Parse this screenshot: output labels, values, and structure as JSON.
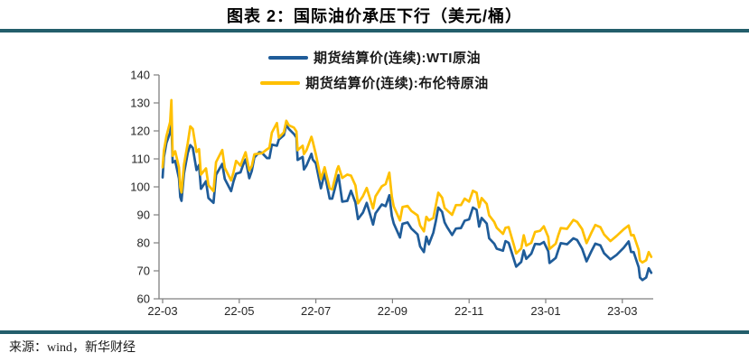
{
  "header": {
    "title": "图表 2：国际油价承压下行（美元/桶）"
  },
  "footer": {
    "source": "来源：wind，新华财经"
  },
  "colors": {
    "divider": "#235E6B",
    "axis": "#7F7F7F",
    "tick_text": "#262626",
    "background": "#FFFFFF"
  },
  "chart_data": {
    "type": "line",
    "title": "图表 2：国际油价承压下行（美元/桶）",
    "xlabel": "",
    "ylabel": "",
    "ylim": [
      60,
      140
    ],
    "y_ticks": [
      60,
      70,
      80,
      90,
      100,
      110,
      120,
      130,
      140
    ],
    "x_tick_labels": [
      "22-03",
      "22-05",
      "22-07",
      "22-09",
      "22-11",
      "23-01",
      "23-03"
    ],
    "x_tick_months": [
      0,
      2,
      4,
      6,
      8,
      10,
      12
    ],
    "grid": false,
    "legend_position": "top",
    "dates": [
      "2022-03-01",
      "2022-03-02",
      "2022-03-04",
      "2022-03-07",
      "2022-03-08",
      "2022-03-09",
      "2022-03-11",
      "2022-03-14",
      "2022-03-15",
      "2022-03-16",
      "2022-03-18",
      "2022-03-21",
      "2022-03-23",
      "2022-03-25",
      "2022-03-28",
      "2022-03-30",
      "2022-04-01",
      "2022-04-05",
      "2022-04-07",
      "2022-04-11",
      "2022-04-13",
      "2022-04-18",
      "2022-04-20",
      "2022-04-25",
      "2022-04-27",
      "2022-04-29",
      "2022-05-02",
      "2022-05-04",
      "2022-05-06",
      "2022-05-09",
      "2022-05-11",
      "2022-05-13",
      "2022-05-17",
      "2022-05-19",
      "2022-05-23",
      "2022-05-25",
      "2022-05-27",
      "2022-05-31",
      "2022-06-02",
      "2022-06-06",
      "2022-06-08",
      "2022-06-10",
      "2022-06-14",
      "2022-06-16",
      "2022-06-17",
      "2022-06-21",
      "2022-06-22",
      "2022-06-24",
      "2022-06-28",
      "2022-06-29",
      "2022-07-01",
      "2022-07-05",
      "2022-07-08",
      "2022-07-12",
      "2022-07-14",
      "2022-07-18",
      "2022-07-19",
      "2022-07-22",
      "2022-07-26",
      "2022-07-29",
      "2022-08-02",
      "2022-08-04",
      "2022-08-08",
      "2022-08-11",
      "2022-08-16",
      "2022-08-18",
      "2022-08-23",
      "2022-08-26",
      "2022-08-29",
      "2022-08-31",
      "2022-09-02",
      "2022-09-07",
      "2022-09-09",
      "2022-09-13",
      "2022-09-16",
      "2022-09-21",
      "2022-09-23",
      "2022-09-26",
      "2022-09-28",
      "2022-09-30",
      "2022-10-03",
      "2022-10-05",
      "2022-10-07",
      "2022-10-10",
      "2022-10-12",
      "2022-10-14",
      "2022-10-18",
      "2022-10-21",
      "2022-10-25",
      "2022-10-28",
      "2022-11-01",
      "2022-11-04",
      "2022-11-07",
      "2022-11-09",
      "2022-11-11",
      "2022-11-15",
      "2022-11-17",
      "2022-11-21",
      "2022-11-23",
      "2022-11-28",
      "2022-11-30",
      "2022-12-02",
      "2022-12-06",
      "2022-12-08",
      "2022-12-12",
      "2022-12-14",
      "2022-12-16",
      "2022-12-20",
      "2022-12-23",
      "2022-12-27",
      "2022-12-30",
      "2023-01-03",
      "2023-01-04",
      "2023-01-09",
      "2023-01-11",
      "2023-01-13",
      "2023-01-18",
      "2023-01-23",
      "2023-01-26",
      "2023-01-30",
      "2023-02-03",
      "2023-02-07",
      "2023-02-10",
      "2023-02-14",
      "2023-02-17",
      "2023-02-22",
      "2023-02-27",
      "2023-03-02",
      "2023-03-06",
      "2023-03-08",
      "2023-03-10",
      "2023-03-14",
      "2023-03-15",
      "2023-03-17",
      "2023-03-20",
      "2023-03-22",
      "2023-03-24"
    ],
    "series": [
      {
        "name": "期货结算价(连续):WTI原油",
        "color": "#1F5C99",
        "values": [
          103.4,
          110.6,
          115.7,
          119.4,
          123.7,
          108.7,
          109.3,
          103.0,
          96.4,
          95.0,
          104.7,
          112.1,
          114.9,
          113.9,
          106.0,
          107.8,
          99.3,
          102.0,
          96.0,
          94.3,
          104.3,
          108.2,
          102.8,
          98.5,
          102.0,
          104.7,
          105.2,
          107.8,
          109.8,
          103.1,
          105.7,
          110.5,
          112.4,
          112.2,
          110.3,
          110.3,
          115.1,
          114.7,
          116.9,
          118.5,
          122.1,
          120.7,
          118.9,
          117.6,
          109.6,
          110.7,
          106.2,
          107.6,
          111.8,
          109.8,
          108.4,
          99.5,
          104.8,
          95.8,
          95.8,
          102.6,
          104.2,
          94.7,
          95.0,
          98.6,
          94.4,
          88.5,
          90.8,
          94.3,
          86.5,
          90.5,
          93.7,
          93.1,
          97.0,
          89.6,
          86.9,
          81.9,
          86.8,
          87.3,
          85.1,
          83.0,
          78.7,
          76.7,
          82.2,
          79.5,
          83.6,
          87.8,
          92.6,
          91.1,
          87.3,
          85.6,
          82.8,
          85.1,
          85.3,
          87.9,
          88.4,
          92.6,
          91.8,
          85.8,
          88.9,
          86.9,
          81.6,
          79.7,
          77.9,
          77.2,
          80.6,
          80.0,
          74.3,
          71.5,
          73.2,
          77.3,
          74.3,
          76.1,
          79.6,
          79.5,
          80.3,
          77.0,
          72.8,
          74.6,
          77.4,
          79.9,
          79.5,
          81.6,
          81.0,
          77.9,
          73.4,
          77.1,
          79.7,
          79.1,
          76.3,
          74.1,
          75.7,
          78.2,
          80.5,
          76.7,
          76.7,
          71.3,
          67.6,
          66.7,
          67.6,
          70.9,
          69.3
        ]
      },
      {
        "name": "期货结算价(连续):布伦特原油",
        "color": "#FFC000",
        "values": [
          107.0,
          112.9,
          118.1,
          123.2,
          131.0,
          111.1,
          112.7,
          106.9,
          99.9,
          98.0,
          107.9,
          115.6,
          121.6,
          120.7,
          112.5,
          113.5,
          104.4,
          106.6,
          100.6,
          98.5,
          108.8,
          113.2,
          106.8,
          102.3,
          105.3,
          109.3,
          107.6,
          110.1,
          112.4,
          105.9,
          107.5,
          111.6,
          111.9,
          112.0,
          113.4,
          114.0,
          119.4,
          122.8,
          117.6,
          119.5,
          123.6,
          122.0,
          121.2,
          119.8,
          113.1,
          114.7,
          111.7,
          113.1,
          117.9,
          116.3,
          111.6,
          102.8,
          107.0,
          99.5,
          99.1,
          106.3,
          107.4,
          103.2,
          104.4,
          104.0,
          100.5,
          94.1,
          96.7,
          99.6,
          92.3,
          96.6,
          100.2,
          101.0,
          105.1,
          96.5,
          93.0,
          88.0,
          92.8,
          93.2,
          91.4,
          89.8,
          86.2,
          84.1,
          89.3,
          88.0,
          88.9,
          93.4,
          97.9,
          96.2,
          92.5,
          91.6,
          90.0,
          93.5,
          93.5,
          95.8,
          94.7,
          98.6,
          97.9,
          92.7,
          96.0,
          93.9,
          89.8,
          87.5,
          85.4,
          83.2,
          85.4,
          85.6,
          79.4,
          76.2,
          78.0,
          82.7,
          79.0,
          80.0,
          83.9,
          84.3,
          85.9,
          82.1,
          77.8,
          79.7,
          82.7,
          85.3,
          85.0,
          88.2,
          87.5,
          84.9,
          79.9,
          83.7,
          86.4,
          85.6,
          83.0,
          80.6,
          82.5,
          84.8,
          86.2,
          82.7,
          82.8,
          77.5,
          73.7,
          73.0,
          73.8,
          76.7,
          75.0
        ]
      }
    ]
  }
}
